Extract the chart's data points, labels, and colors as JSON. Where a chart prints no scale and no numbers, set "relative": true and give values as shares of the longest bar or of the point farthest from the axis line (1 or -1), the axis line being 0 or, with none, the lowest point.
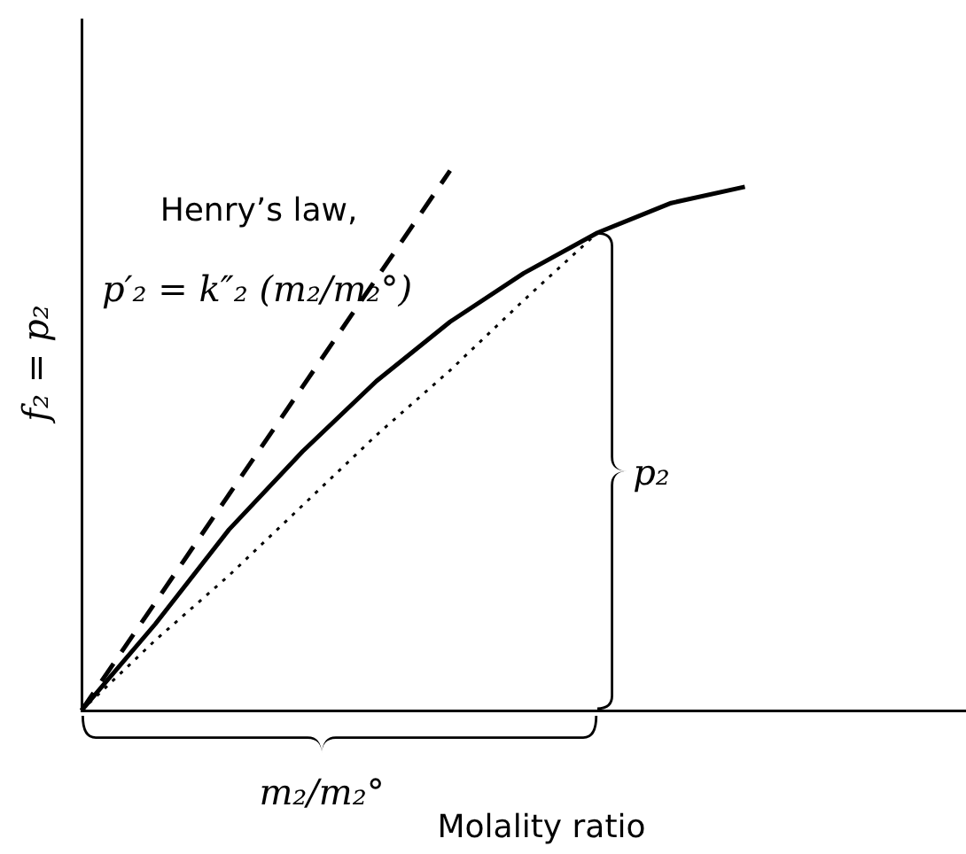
{
  "chart_data": {
    "type": "line",
    "relative": true,
    "xlabel": "Molality ratio",
    "ylabel": "f₂ = p₂",
    "tick_labels": false,
    "legend": false,
    "marker": "none",
    "categories": [
      null,
      null,
      null,
      null,
      null,
      null,
      null,
      null,
      null,
      null,
      null,
      null,
      null
    ],
    "series": [
      {
        "color": "#000000",
        "line_style": "solid",
        "values": [
          0,
          0.16,
          0.335,
          0.48,
          0.61,
          0.72,
          0.81,
          0.885,
          0.94,
          0.97,
          null,
          null,
          null
        ]
      },
      {
        "color": "#000000",
        "line_style": "dashed",
        "values": [
          0,
          0.2,
          0.4,
          0.6,
          0.8,
          1,
          null,
          null,
          null,
          null,
          null,
          null,
          null
        ]
      },
      {
        "color": "#000000",
        "line_style": "dotted",
        "values": [
          0,
          0.13,
          0.25,
          0.38,
          0.51,
          0.63,
          0.76,
          0.885,
          null,
          null,
          null,
          null,
          null
        ]
      }
    ],
    "annotations": [
      "Henry’s law,",
      "p′₂ = k″₂ (m₂/m₂°)",
      "p₂",
      "m₂/m₂°"
    ]
  }
}
